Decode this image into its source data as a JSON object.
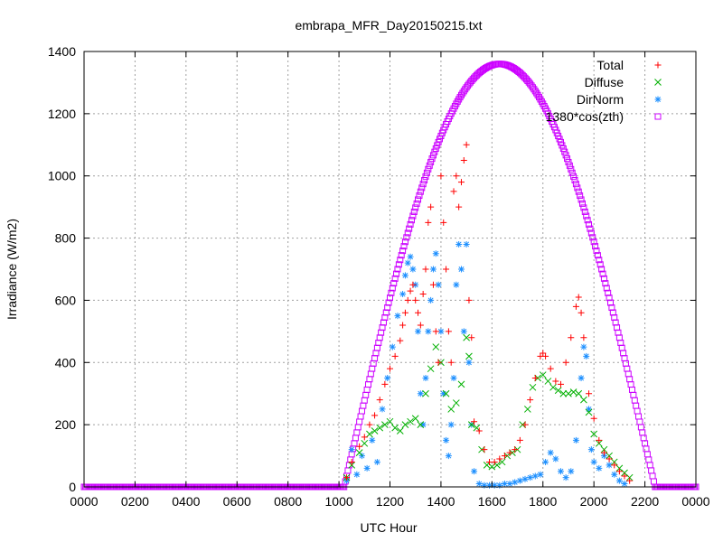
{
  "chart_data": {
    "type": "scatter",
    "title": "embrapa_MFR_Day20150215.txt",
    "xlabel": "UTC Hour",
    "ylabel": "Irradiance (W/m2)",
    "xlim": [
      0,
      24
    ],
    "ylim": [
      0,
      1400
    ],
    "x_tick_labels": [
      "0000",
      "0200",
      "0400",
      "0600",
      "0800",
      "1000",
      "1200",
      "1400",
      "1600",
      "1800",
      "2000",
      "2200",
      "0000"
    ],
    "y_ticks": [
      0,
      200,
      400,
      600,
      800,
      1000,
      1200,
      1400
    ],
    "grid": true,
    "legend_position": "top-right",
    "series": [
      {
        "name": "Total",
        "marker": "plus",
        "color": "#ff0000",
        "points": [
          [
            10.3,
            30
          ],
          [
            10.5,
            80
          ],
          [
            10.8,
            130
          ],
          [
            11.0,
            160
          ],
          [
            11.2,
            200
          ],
          [
            11.4,
            230
          ],
          [
            11.6,
            280
          ],
          [
            11.8,
            330
          ],
          [
            12.0,
            380
          ],
          [
            12.2,
            420
          ],
          [
            12.4,
            470
          ],
          [
            12.5,
            520
          ],
          [
            12.6,
            560
          ],
          [
            12.7,
            600
          ],
          [
            12.8,
            630
          ],
          [
            12.9,
            650
          ],
          [
            13.0,
            600
          ],
          [
            13.1,
            560
          ],
          [
            13.2,
            520
          ],
          [
            13.3,
            620
          ],
          [
            13.4,
            700
          ],
          [
            13.5,
            850
          ],
          [
            13.6,
            900
          ],
          [
            13.7,
            650
          ],
          [
            13.8,
            500
          ],
          [
            13.9,
            400
          ],
          [
            14.0,
            1000
          ],
          [
            14.1,
            850
          ],
          [
            14.2,
            700
          ],
          [
            14.3,
            500
          ],
          [
            14.4,
            400
          ],
          [
            14.5,
            950
          ],
          [
            14.6,
            1000
          ],
          [
            14.7,
            900
          ],
          [
            14.8,
            980
          ],
          [
            14.9,
            1050
          ],
          [
            15.0,
            1100
          ],
          [
            15.1,
            600
          ],
          [
            15.2,
            480
          ],
          [
            15.3,
            210
          ],
          [
            15.5,
            180
          ],
          [
            15.7,
            120
          ],
          [
            15.9,
            80
          ],
          [
            16.1,
            80
          ],
          [
            16.3,
            90
          ],
          [
            16.5,
            100
          ],
          [
            16.7,
            110
          ],
          [
            16.9,
            120
          ],
          [
            17.1,
            150
          ],
          [
            17.3,
            200
          ],
          [
            17.5,
            280
          ],
          [
            17.7,
            350
          ],
          [
            17.9,
            420
          ],
          [
            18.0,
            430
          ],
          [
            18.1,
            420
          ],
          [
            18.3,
            380
          ],
          [
            18.5,
            340
          ],
          [
            18.7,
            330
          ],
          [
            18.9,
            400
          ],
          [
            19.1,
            480
          ],
          [
            19.3,
            580
          ],
          [
            19.4,
            610
          ],
          [
            19.5,
            560
          ],
          [
            19.6,
            480
          ],
          [
            19.8,
            300
          ],
          [
            20.0,
            220
          ],
          [
            20.2,
            150
          ],
          [
            20.4,
            110
          ],
          [
            20.6,
            90
          ],
          [
            20.8,
            70
          ],
          [
            21.0,
            50
          ],
          [
            21.2,
            35
          ],
          [
            21.4,
            20
          ]
        ]
      },
      {
        "name": "Diffuse",
        "marker": "cross",
        "color": "#00b000",
        "points": [
          [
            10.3,
            30
          ],
          [
            10.5,
            70
          ],
          [
            10.8,
            110
          ],
          [
            11.0,
            140
          ],
          [
            11.2,
            170
          ],
          [
            11.4,
            180
          ],
          [
            11.6,
            190
          ],
          [
            11.8,
            200
          ],
          [
            12.0,
            210
          ],
          [
            12.2,
            190
          ],
          [
            12.4,
            180
          ],
          [
            12.6,
            200
          ],
          [
            12.8,
            210
          ],
          [
            13.0,
            220
          ],
          [
            13.2,
            200
          ],
          [
            13.4,
            300
          ],
          [
            13.6,
            380
          ],
          [
            13.8,
            450
          ],
          [
            14.0,
            400
          ],
          [
            14.2,
            300
          ],
          [
            14.4,
            250
          ],
          [
            14.6,
            270
          ],
          [
            14.8,
            330
          ],
          [
            15.0,
            480
          ],
          [
            15.1,
            420
          ],
          [
            15.2,
            200
          ],
          [
            15.4,
            190
          ],
          [
            15.6,
            120
          ],
          [
            15.8,
            70
          ],
          [
            16.0,
            65
          ],
          [
            16.2,
            70
          ],
          [
            16.4,
            80
          ],
          [
            16.6,
            100
          ],
          [
            16.8,
            110
          ],
          [
            17.0,
            120
          ],
          [
            17.2,
            200
          ],
          [
            17.4,
            250
          ],
          [
            17.6,
            320
          ],
          [
            17.8,
            350
          ],
          [
            18.0,
            360
          ],
          [
            18.2,
            340
          ],
          [
            18.4,
            320
          ],
          [
            18.6,
            310
          ],
          [
            18.8,
            300
          ],
          [
            19.0,
            300
          ],
          [
            19.2,
            305
          ],
          [
            19.4,
            300
          ],
          [
            19.6,
            280
          ],
          [
            19.8,
            240
          ],
          [
            20.0,
            170
          ],
          [
            20.2,
            140
          ],
          [
            20.4,
            120
          ],
          [
            20.6,
            100
          ],
          [
            20.8,
            80
          ],
          [
            21.0,
            60
          ],
          [
            21.2,
            45
          ],
          [
            21.4,
            30
          ]
        ]
      },
      {
        "name": "DirNorm",
        "marker": "star",
        "color": "#1e90ff",
        "points": [
          [
            10.3,
            20
          ],
          [
            10.5,
            120
          ],
          [
            10.7,
            40
          ],
          [
            10.9,
            100
          ],
          [
            11.1,
            60
          ],
          [
            11.3,
            150
          ],
          [
            11.5,
            80
          ],
          [
            11.7,
            250
          ],
          [
            11.9,
            350
          ],
          [
            12.1,
            450
          ],
          [
            12.3,
            550
          ],
          [
            12.5,
            620
          ],
          [
            12.6,
            680
          ],
          [
            12.7,
            720
          ],
          [
            12.8,
            740
          ],
          [
            12.9,
            700
          ],
          [
            13.0,
            650
          ],
          [
            13.1,
            500
          ],
          [
            13.2,
            300
          ],
          [
            13.3,
            200
          ],
          [
            13.4,
            350
          ],
          [
            13.5,
            500
          ],
          [
            13.6,
            600
          ],
          [
            13.7,
            700
          ],
          [
            13.8,
            750
          ],
          [
            13.9,
            650
          ],
          [
            14.0,
            500
          ],
          [
            14.1,
            300
          ],
          [
            14.2,
            150
          ],
          [
            14.3,
            100
          ],
          [
            14.4,
            200
          ],
          [
            14.5,
            350
          ],
          [
            14.6,
            650
          ],
          [
            14.7,
            780
          ],
          [
            14.8,
            700
          ],
          [
            14.9,
            500
          ],
          [
            15.0,
            780
          ],
          [
            15.1,
            400
          ],
          [
            15.2,
            200
          ],
          [
            15.3,
            50
          ],
          [
            15.5,
            10
          ],
          [
            15.7,
            5
          ],
          [
            15.9,
            5
          ],
          [
            16.1,
            5
          ],
          [
            16.3,
            5
          ],
          [
            16.5,
            10
          ],
          [
            16.7,
            10
          ],
          [
            16.9,
            15
          ],
          [
            17.1,
            20
          ],
          [
            17.3,
            25
          ],
          [
            17.5,
            30
          ],
          [
            17.7,
            35
          ],
          [
            17.9,
            40
          ],
          [
            18.1,
            80
          ],
          [
            18.3,
            110
          ],
          [
            18.5,
            90
          ],
          [
            18.7,
            50
          ],
          [
            18.9,
            30
          ],
          [
            19.1,
            50
          ],
          [
            19.3,
            150
          ],
          [
            19.5,
            350
          ],
          [
            19.6,
            450
          ],
          [
            19.7,
            420
          ],
          [
            19.8,
            250
          ],
          [
            19.9,
            120
          ],
          [
            20.0,
            80
          ],
          [
            20.2,
            60
          ],
          [
            20.4,
            100
          ],
          [
            20.6,
            70
          ],
          [
            20.8,
            40
          ],
          [
            21.0,
            20
          ],
          [
            21.2,
            10
          ]
        ]
      },
      {
        "name": "1380*cos(zth)",
        "marker": "square",
        "color": "#cc00ff",
        "amplitude": 1360,
        "peak_hour": 16.3,
        "sunrise_hour": 10.2,
        "sunset_hour": 22.4
      }
    ]
  }
}
